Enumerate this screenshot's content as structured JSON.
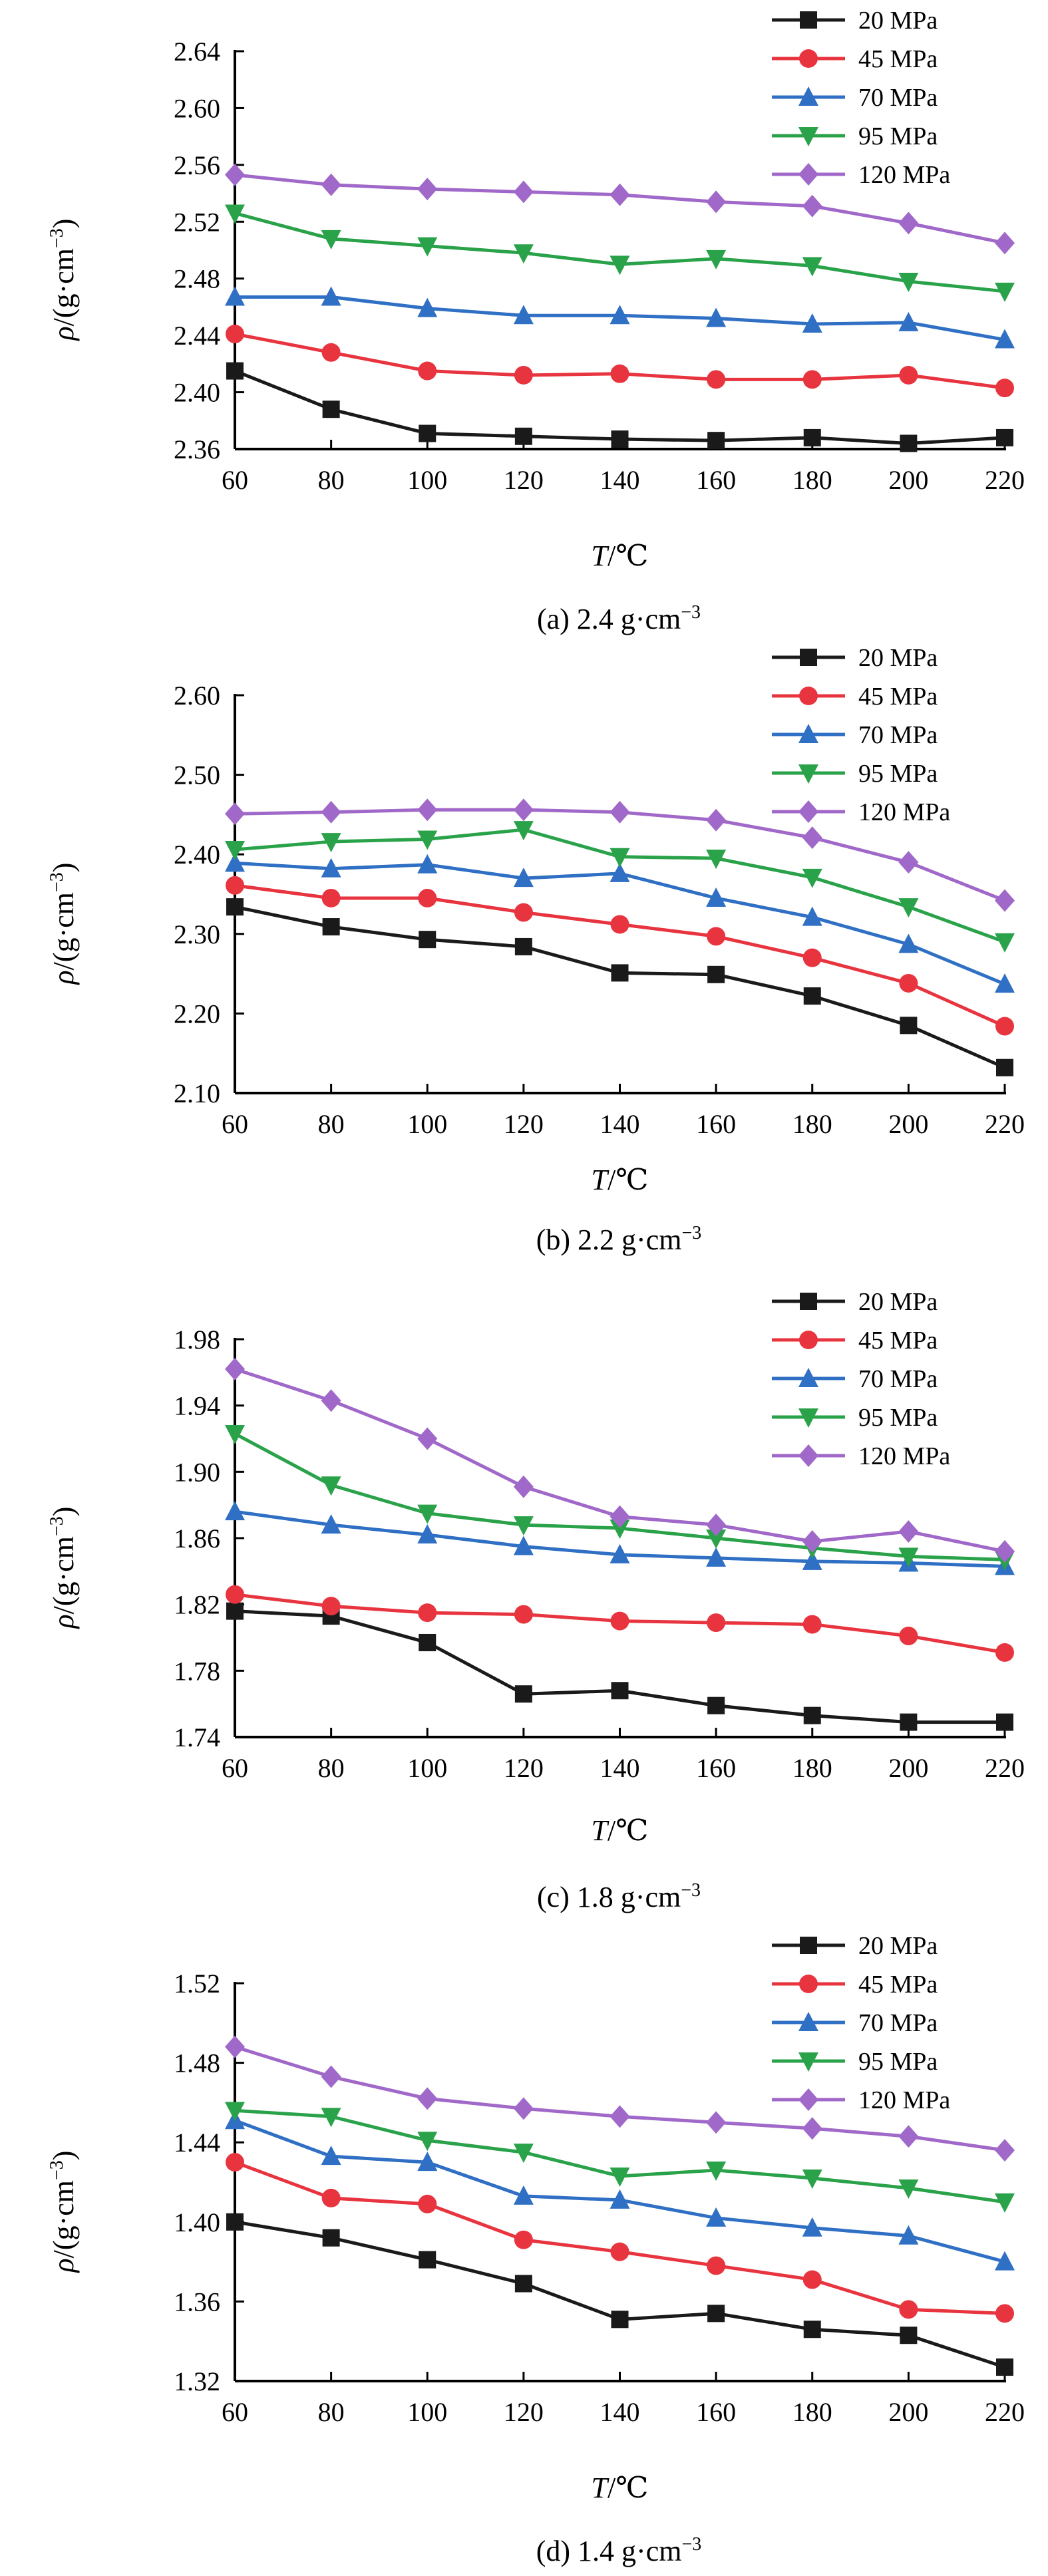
{
  "colors": {
    "20 MPa": "#1a1a1a",
    "45 MPa": "#e8343f",
    "70 MPa": "#2f6fc4",
    "95 MPa": "#2aa24a",
    "120 MPa": "#a068c8"
  },
  "chart_data": [
    {
      "type": "line",
      "caption": "(a) 2.4 g·cm",
      "caption_sup": "−3",
      "ylabel_main": "ρ/(g·cm",
      "ylabel_sup": "−3",
      "ylabel_close": ")",
      "xlabel": "T/℃",
      "x": [
        60,
        80,
        100,
        120,
        140,
        160,
        180,
        200,
        220
      ],
      "xticks": [
        "60",
        "80",
        "100",
        "120",
        "140",
        "160",
        "180",
        "200",
        "220"
      ],
      "ylim": [
        2.36,
        2.64
      ],
      "yticks": [
        "2.36",
        "2.40",
        "2.44",
        "2.48",
        "2.52",
        "2.56",
        "2.60",
        "2.64"
      ],
      "grid": false,
      "legend": "top-right",
      "series": [
        {
          "name": "20 MPa",
          "marker": "square",
          "values": [
            2.415,
            2.388,
            2.371,
            2.369,
            2.367,
            2.366,
            2.368,
            2.364,
            2.368
          ]
        },
        {
          "name": "45 MPa",
          "marker": "circle",
          "values": [
            2.441,
            2.428,
            2.415,
            2.412,
            2.413,
            2.409,
            2.409,
            2.412,
            2.403
          ]
        },
        {
          "name": "70 MPa",
          "marker": "triangle-up",
          "values": [
            2.467,
            2.467,
            2.459,
            2.454,
            2.454,
            2.452,
            2.448,
            2.449,
            2.437
          ]
        },
        {
          "name": "95 MPa",
          "marker": "triangle-down",
          "values": [
            2.526,
            2.508,
            2.503,
            2.498,
            2.49,
            2.494,
            2.489,
            2.478,
            2.471
          ]
        },
        {
          "name": "120 MPa",
          "marker": "diamond",
          "values": [
            2.553,
            2.546,
            2.543,
            2.541,
            2.539,
            2.534,
            2.531,
            2.519,
            2.505
          ]
        }
      ]
    },
    {
      "type": "line",
      "caption": "(b) 2.2 g·cm",
      "caption_sup": "−3",
      "ylabel_main": "ρ/(g·cm",
      "ylabel_sup": "−3",
      "ylabel_close": ")",
      "xlabel": "T/℃",
      "x": [
        60,
        80,
        100,
        120,
        140,
        160,
        180,
        200,
        220
      ],
      "xticks": [
        "60",
        "80",
        "100",
        "120",
        "140",
        "160",
        "180",
        "200",
        "220"
      ],
      "ylim": [
        2.1,
        2.6
      ],
      "yticks": [
        "2.10",
        "2.20",
        "2.30",
        "2.40",
        "2.50",
        "2.60"
      ],
      "grid": false,
      "legend": "top-right",
      "series": [
        {
          "name": "20 MPa",
          "marker": "square",
          "values": [
            2.334,
            2.309,
            2.293,
            2.284,
            2.251,
            2.249,
            2.222,
            2.185,
            2.132
          ]
        },
        {
          "name": "45 MPa",
          "marker": "circle",
          "values": [
            2.361,
            2.345,
            2.345,
            2.327,
            2.312,
            2.297,
            2.27,
            2.238,
            2.184
          ]
        },
        {
          "name": "70 MPa",
          "marker": "triangle-up",
          "values": [
            2.389,
            2.382,
            2.387,
            2.37,
            2.376,
            2.345,
            2.321,
            2.287,
            2.237
          ]
        },
        {
          "name": "95 MPa",
          "marker": "triangle-down",
          "values": [
            2.406,
            2.416,
            2.419,
            2.431,
            2.397,
            2.395,
            2.371,
            2.334,
            2.29
          ]
        },
        {
          "name": "120 MPa",
          "marker": "diamond",
          "values": [
            2.451,
            2.453,
            2.456,
            2.456,
            2.453,
            2.443,
            2.421,
            2.39,
            2.342
          ]
        }
      ]
    },
    {
      "type": "line",
      "caption": "(c) 1.8 g·cm",
      "caption_sup": "−3",
      "ylabel_main": "ρ/(g·cm",
      "ylabel_sup": "−3",
      "ylabel_close": ")",
      "xlabel": "T/℃",
      "x": [
        60,
        80,
        100,
        120,
        140,
        160,
        180,
        200,
        220
      ],
      "xticks": [
        "60",
        "80",
        "100",
        "120",
        "140",
        "160",
        "180",
        "200",
        "220"
      ],
      "ylim": [
        1.74,
        1.98
      ],
      "yticks": [
        "1.74",
        "1.78",
        "1.82",
        "1.86",
        "1.90",
        "1.94",
        "1.98"
      ],
      "grid": false,
      "legend": "top-right",
      "series": [
        {
          "name": "20 MPa",
          "marker": "square",
          "values": [
            1.816,
            1.813,
            1.797,
            1.766,
            1.768,
            1.759,
            1.753,
            1.749,
            1.749
          ]
        },
        {
          "name": "45 MPa",
          "marker": "circle",
          "values": [
            1.826,
            1.819,
            1.815,
            1.814,
            1.81,
            1.809,
            1.808,
            1.801,
            1.791
          ]
        },
        {
          "name": "70 MPa",
          "marker": "triangle-up",
          "values": [
            1.876,
            1.868,
            1.862,
            1.855,
            1.85,
            1.848,
            1.846,
            1.845,
            1.843
          ]
        },
        {
          "name": "95 MPa",
          "marker": "triangle-down",
          "values": [
            1.923,
            1.892,
            1.875,
            1.868,
            1.866,
            1.86,
            1.854,
            1.849,
            1.847
          ]
        },
        {
          "name": "120 MPa",
          "marker": "diamond",
          "values": [
            1.962,
            1.943,
            1.92,
            1.891,
            1.873,
            1.868,
            1.858,
            1.864,
            1.852
          ]
        }
      ]
    },
    {
      "type": "line",
      "caption": "(d) 1.4 g·cm",
      "caption_sup": "−3",
      "ylabel_main": "ρ/(g·cm",
      "ylabel_sup": "−3",
      "ylabel_close": ")",
      "xlabel": "T/℃",
      "x": [
        60,
        80,
        100,
        120,
        140,
        160,
        180,
        200,
        220
      ],
      "xticks": [
        "60",
        "80",
        "100",
        "120",
        "140",
        "160",
        "180",
        "200",
        "220"
      ],
      "ylim": [
        1.32,
        1.52
      ],
      "yticks": [
        "1.32",
        "1.36",
        "1.40",
        "1.44",
        "1.48",
        "1.52"
      ],
      "grid": false,
      "legend": "top-right",
      "series": [
        {
          "name": "20 MPa",
          "marker": "square",
          "values": [
            1.4,
            1.392,
            1.381,
            1.369,
            1.351,
            1.354,
            1.346,
            1.343,
            1.327
          ]
        },
        {
          "name": "45 MPa",
          "marker": "circle",
          "values": [
            1.43,
            1.412,
            1.409,
            1.391,
            1.385,
            1.378,
            1.371,
            1.356,
            1.354
          ]
        },
        {
          "name": "70 MPa",
          "marker": "triangle-up",
          "values": [
            1.451,
            1.433,
            1.43,
            1.413,
            1.411,
            1.402,
            1.397,
            1.393,
            1.38
          ]
        },
        {
          "name": "95 MPa",
          "marker": "triangle-down",
          "values": [
            1.456,
            1.453,
            1.441,
            1.435,
            1.423,
            1.426,
            1.422,
            1.417,
            1.41
          ]
        },
        {
          "name": "120 MPa",
          "marker": "diamond",
          "values": [
            1.488,
            1.473,
            1.462,
            1.457,
            1.453,
            1.45,
            1.447,
            1.443,
            1.436
          ]
        }
      ]
    }
  ]
}
